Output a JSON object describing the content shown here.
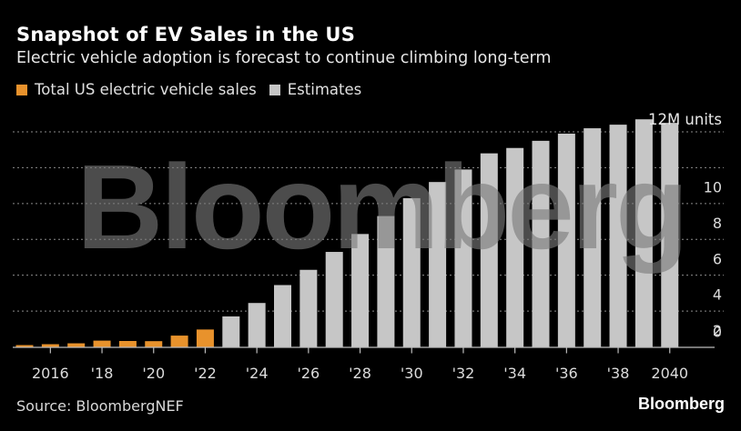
{
  "header": {
    "title": "Snapshot of EV Sales in the US",
    "subtitle": "Electric vehicle adoption is forecast to continue climbing long-term"
  },
  "legend": [
    {
      "label": "Total US electric vehicle sales",
      "color": "#e8922c"
    },
    {
      "label": "Estimates",
      "color": "#c6c6c6"
    }
  ],
  "footer": {
    "source": "Source: BloombergNEF",
    "brand": "Bloomberg"
  },
  "watermark": "Bloomberg",
  "chart_data": {
    "type": "bar",
    "title": "Snapshot of EV Sales in the US",
    "subtitle": "Electric vehicle adoption is forecast to continue climbing long-term",
    "xlabel": "",
    "ylabel": "",
    "unit_label": "12M units",
    "categories": [
      "2015",
      "2016",
      "2017",
      "2018",
      "2019",
      "2020",
      "2021",
      "2022",
      "2023",
      "2024",
      "2025",
      "2026",
      "2027",
      "2028",
      "2029",
      "2030",
      "2031",
      "2032",
      "2033",
      "2034",
      "2035",
      "2036",
      "2037",
      "2038",
      "2039",
      "2040"
    ],
    "series": [
      {
        "name": "Total US electric vehicle sales",
        "color": "#e8922c",
        "values": [
          0.1,
          0.15,
          0.2,
          0.35,
          0.33,
          0.32,
          0.63,
          0.97,
          null,
          null,
          null,
          null,
          null,
          null,
          null,
          null,
          null,
          null,
          null,
          null,
          null,
          null,
          null,
          null,
          null,
          null
        ]
      },
      {
        "name": "Estimates",
        "color": "#c6c6c6",
        "values": [
          null,
          null,
          null,
          null,
          null,
          null,
          null,
          null,
          1.7,
          2.45,
          3.45,
          4.3,
          5.3,
          6.3,
          7.3,
          8.3,
          9.2,
          9.9,
          10.8,
          11.1,
          11.5,
          11.9,
          12.2,
          12.4,
          12.7,
          12.5
        ]
      }
    ],
    "x_tick_labels": [
      {
        "year": "2016",
        "label": "2016"
      },
      {
        "year": "2018",
        "label": "'18"
      },
      {
        "year": "2020",
        "label": "'20"
      },
      {
        "year": "2022",
        "label": "'22"
      },
      {
        "year": "2024",
        "label": "'24"
      },
      {
        "year": "2026",
        "label": "'26"
      },
      {
        "year": "2028",
        "label": "'28"
      },
      {
        "year": "2030",
        "label": "'30"
      },
      {
        "year": "2032",
        "label": "'32"
      },
      {
        "year": "2034",
        "label": "'34"
      },
      {
        "year": "2036",
        "label": "'36"
      },
      {
        "year": "2038",
        "label": "'38"
      },
      {
        "year": "2040",
        "label": "2040"
      }
    ],
    "y_ticks": [
      0,
      2,
      4,
      6,
      8,
      10,
      12
    ],
    "y_tick_labels": [
      "0",
      "2",
      "4",
      "6",
      "8",
      "10",
      "12M units"
    ],
    "ylim": [
      0,
      12
    ],
    "grid": true,
    "y_axis_side": "right",
    "legend_position": "top-left"
  }
}
